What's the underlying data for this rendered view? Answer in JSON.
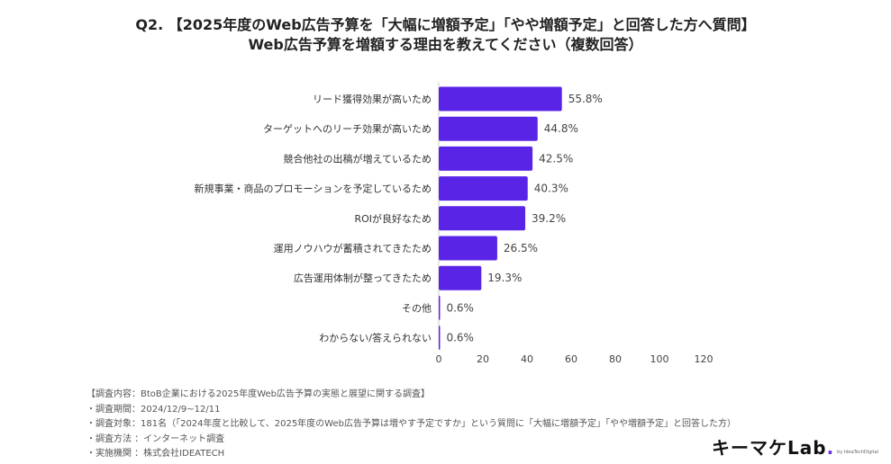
{
  "title": {
    "line1": "Q2. 【2025年度のWeb広告予算を「大幅に増額予定」「やや増額予定」と回答した方へ質問】",
    "line2": "Web広告予算を増額する理由を教えてください（複数回答）"
  },
  "chart_data": {
    "type": "bar",
    "orientation": "horizontal",
    "categories": [
      "リード獲得効果が高いため",
      "ターゲットへのリーチ効果が高いため",
      "競合他社の出稿が増えているため",
      "新規事業・商品のプロモーションを予定しているため",
      "ROIが良好なため",
      "運用ノウハウが蓄積されてきたため",
      "広告運用体制が整ってきたため",
      "その他",
      "わからない/答えられない"
    ],
    "values": [
      55.8,
      44.8,
      42.5,
      40.3,
      39.2,
      26.5,
      19.3,
      0.6,
      0.6
    ],
    "value_labels": [
      "55.8%",
      "44.8%",
      "42.5%",
      "40.3%",
      "39.2%",
      "26.5%",
      "19.3%",
      "0.6%",
      "0.6%"
    ],
    "xticks": [
      "0",
      "20",
      "40",
      "60",
      "80",
      "100",
      "120"
    ],
    "xlim": [
      0,
      120
    ],
    "bar_color": "#5a24e6"
  },
  "notes": [
    "【調査内容：BtoB企業における2025年度Web広告予算の実態と展望に関する調査】",
    "・調査期間：2024/12/9~12/11",
    "・調査対象：181名（「2024年度と比較して、2025年度のWeb広告予算は増やす予定ですか」という質問に「大幅に増額予定」「やや増額予定」と回答した方）",
    "・調査方法 ：インターネット調査",
    "・実施機関 ：株式会社IDEATECH"
  ],
  "logo": {
    "text": "キーマケLab",
    "dot": ".",
    "by": "by IdeaTechDigital"
  }
}
